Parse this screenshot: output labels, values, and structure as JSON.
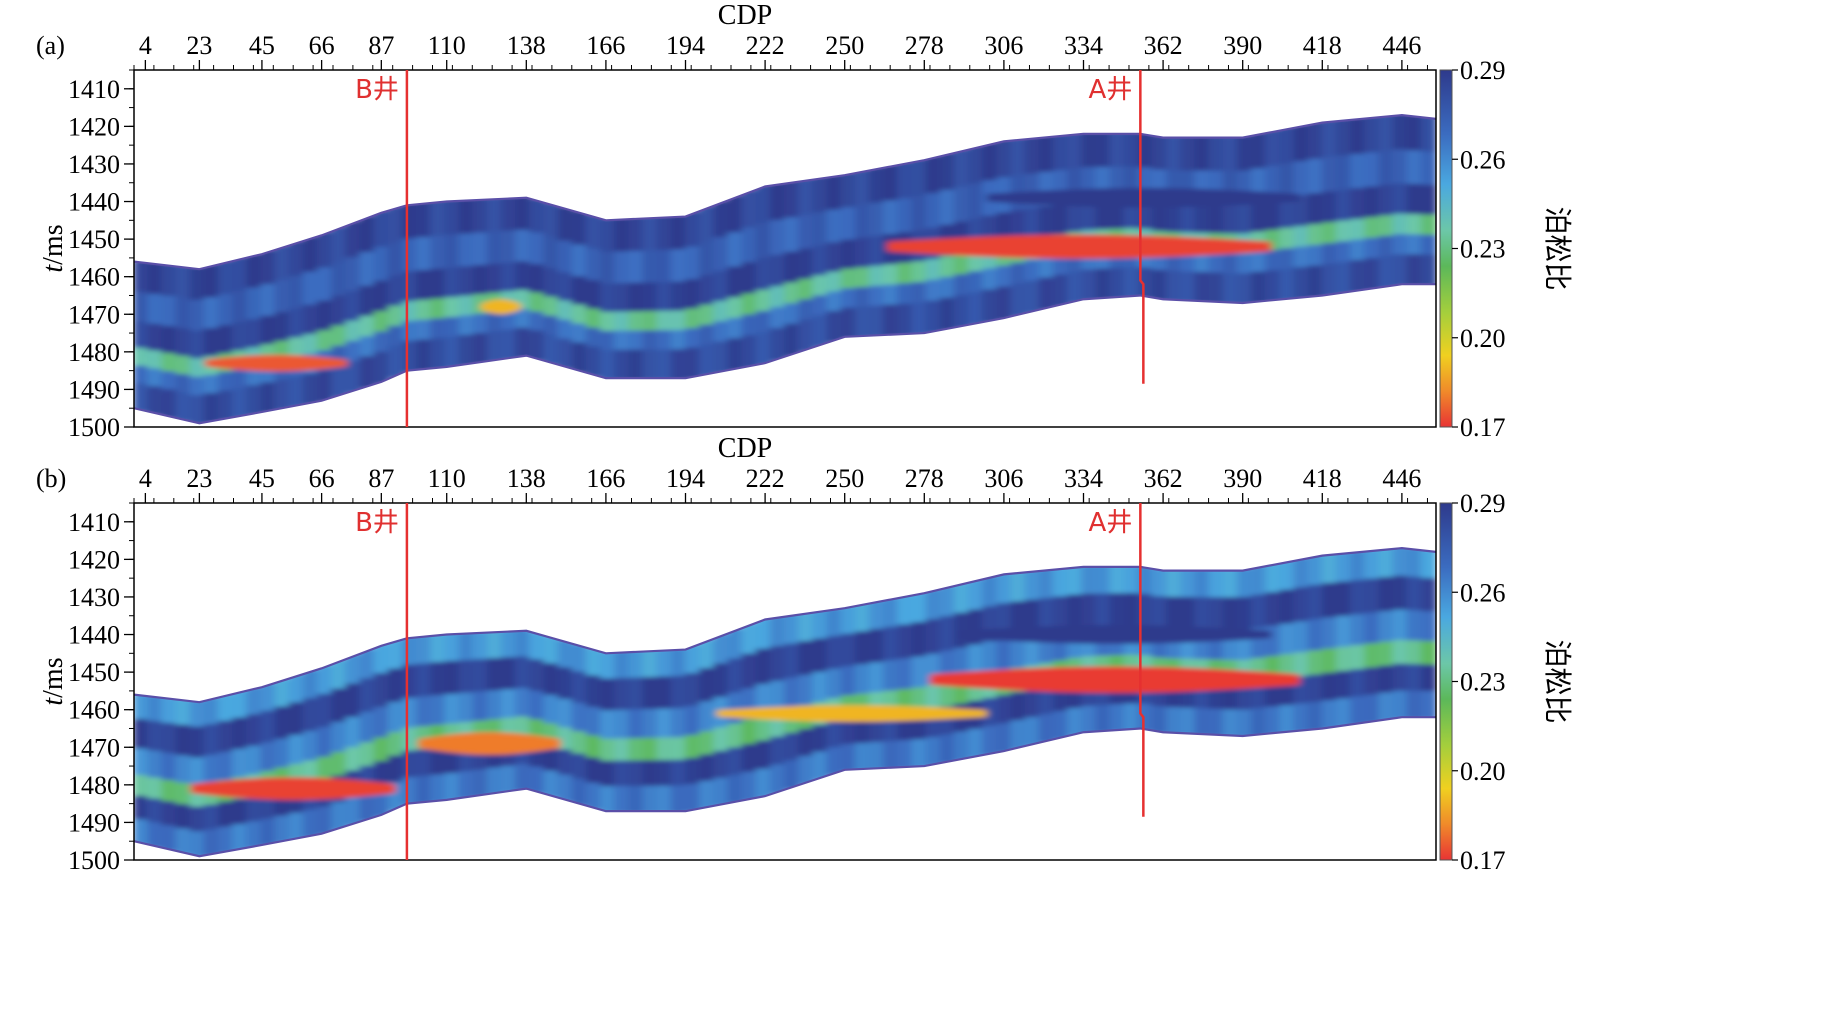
{
  "chart_data": [
    {
      "panel_label": "(a)",
      "type": "heatmap",
      "xlabel": "CDP",
      "ylabel_italic": "t",
      "ylabel_unit": "/ms",
      "x_ticks": [
        4,
        23,
        45,
        66,
        87,
        110,
        138,
        166,
        194,
        222,
        250,
        278,
        306,
        334,
        362,
        390,
        418,
        446
      ],
      "y_ticks": [
        1410,
        1420,
        1430,
        1440,
        1450,
        1460,
        1470,
        1480,
        1490,
        1500
      ],
      "xlim": [
        0,
        458
      ],
      "ylim": [
        1405,
        1500
      ],
      "colorbar": {
        "label": "泊松比",
        "ticks": [
          "0.29",
          "0.26",
          "0.23",
          "0.20",
          "0.17"
        ],
        "range": [
          0.17,
          0.29
        ]
      },
      "wells": [
        {
          "name": "B井",
          "cdp": 96
        },
        {
          "name": "A井",
          "cdp": 354
        }
      ],
      "top_horizon": {
        "cdp": [
          0,
          23,
          45,
          66,
          87,
          96,
          110,
          138,
          166,
          194,
          222,
          250,
          278,
          306,
          334,
          354,
          362,
          390,
          418,
          446,
          458
        ],
        "t": [
          1456,
          1458,
          1454,
          1449,
          1443,
          1441,
          1440,
          1439,
          1445,
          1444,
          1436,
          1433,
          1429,
          1424,
          1422,
          1422,
          1423,
          1423,
          1419,
          1417,
          1418
        ]
      },
      "bottom_horizon": {
        "cdp": [
          0,
          23,
          45,
          66,
          87,
          96,
          110,
          138,
          166,
          194,
          222,
          250,
          278,
          306,
          334,
          354,
          362,
          390,
          418,
          446,
          458
        ],
        "t": [
          1495,
          1499,
          1496,
          1493,
          1488,
          1485,
          1484,
          1481,
          1487,
          1487,
          1483,
          1476,
          1475,
          1471,
          1466,
          1465,
          1466,
          1467,
          1465,
          1462,
          1462
        ]
      },
      "layers": [
        {
          "top_frac": 0.0,
          "bot_frac": 0.22,
          "value": 0.285
        },
        {
          "top_frac": 0.22,
          "bot_frac": 0.42,
          "value": 0.272
        },
        {
          "top_frac": 0.42,
          "bot_frac": 0.6,
          "value": 0.287
        },
        {
          "top_frac": 0.6,
          "bot_frac": 0.72,
          "value": 0.235
        },
        {
          "top_frac": 0.72,
          "bot_frac": 0.84,
          "value": 0.268
        },
        {
          "top_frac": 0.84,
          "bot_frac": 1.0,
          "value": 0.282
        }
      ],
      "anomalies": [
        {
          "cdp": [
            25,
            75
          ],
          "t_center": 1483,
          "half_thick": 2.2,
          "value": 0.175
        },
        {
          "cdp": [
            122,
            136
          ],
          "t_center": 1468,
          "half_thick": 2.0,
          "value": 0.19
        },
        {
          "cdp": [
            265,
            400
          ],
          "t_center": 1452,
          "half_thick": 3.2,
          "value": 0.172
        },
        {
          "cdp": [
            300,
            410
          ],
          "t_center": 1439,
          "half_thick": 2.6,
          "value": 0.29
        }
      ]
    },
    {
      "panel_label": "(b)",
      "type": "heatmap",
      "xlabel": "CDP",
      "ylabel_italic": "t",
      "ylabel_unit": "/ms",
      "x_ticks": [
        4,
        23,
        45,
        66,
        87,
        110,
        138,
        166,
        194,
        222,
        250,
        278,
        306,
        334,
        362,
        390,
        418,
        446
      ],
      "y_ticks": [
        1410,
        1420,
        1430,
        1440,
        1450,
        1460,
        1470,
        1480,
        1490,
        1500
      ],
      "xlim": [
        0,
        458
      ],
      "ylim": [
        1405,
        1500
      ],
      "colorbar": {
        "label": "泊松比",
        "ticks": [
          "0.29",
          "0.26",
          "0.23",
          "0.20",
          "0.17"
        ],
        "range": [
          0.17,
          0.29
        ]
      },
      "wells": [
        {
          "name": "B井",
          "cdp": 96
        },
        {
          "name": "A井",
          "cdp": 354
        }
      ],
      "top_horizon": {
        "cdp": [
          0,
          23,
          45,
          66,
          87,
          96,
          110,
          138,
          166,
          194,
          222,
          250,
          278,
          306,
          334,
          354,
          362,
          390,
          418,
          446,
          458
        ],
        "t": [
          1456,
          1458,
          1454,
          1449,
          1443,
          1441,
          1440,
          1439,
          1445,
          1444,
          1436,
          1433,
          1429,
          1424,
          1422,
          1422,
          1423,
          1423,
          1419,
          1417,
          1418
        ]
      },
      "bottom_horizon": {
        "cdp": [
          0,
          23,
          45,
          66,
          87,
          96,
          110,
          138,
          166,
          194,
          222,
          250,
          278,
          306,
          334,
          354,
          362,
          390,
          418,
          446,
          458
        ],
        "t": [
          1495,
          1499,
          1496,
          1493,
          1488,
          1485,
          1484,
          1481,
          1487,
          1487,
          1483,
          1476,
          1475,
          1471,
          1466,
          1465,
          1466,
          1467,
          1465,
          1462,
          1462
        ]
      },
      "layers": [
        {
          "top_frac": 0.0,
          "bot_frac": 0.18,
          "value": 0.255
        },
        {
          "top_frac": 0.18,
          "bot_frac": 0.38,
          "value": 0.287
        },
        {
          "top_frac": 0.38,
          "bot_frac": 0.56,
          "value": 0.262
        },
        {
          "top_frac": 0.56,
          "bot_frac": 0.7,
          "value": 0.232
        },
        {
          "top_frac": 0.7,
          "bot_frac": 0.86,
          "value": 0.287
        },
        {
          "top_frac": 0.86,
          "bot_frac": 1.0,
          "value": 0.265
        }
      ],
      "anomalies": [
        {
          "cdp": [
            20,
            92
          ],
          "t_center": 1481,
          "half_thick": 3.0,
          "value": 0.172
        },
        {
          "cdp": [
            100,
            150
          ],
          "t_center": 1469,
          "half_thick": 3.0,
          "value": 0.18
        },
        {
          "cdp": [
            205,
            300
          ],
          "t_center": 1461,
          "half_thick": 2.2,
          "value": 0.19
        },
        {
          "cdp": [
            280,
            410
          ],
          "t_center": 1452,
          "half_thick": 3.5,
          "value": 0.171
        },
        {
          "cdp": [
            290,
            400
          ],
          "t_center": 1440,
          "half_thick": 2.5,
          "value": 0.29
        }
      ]
    }
  ]
}
